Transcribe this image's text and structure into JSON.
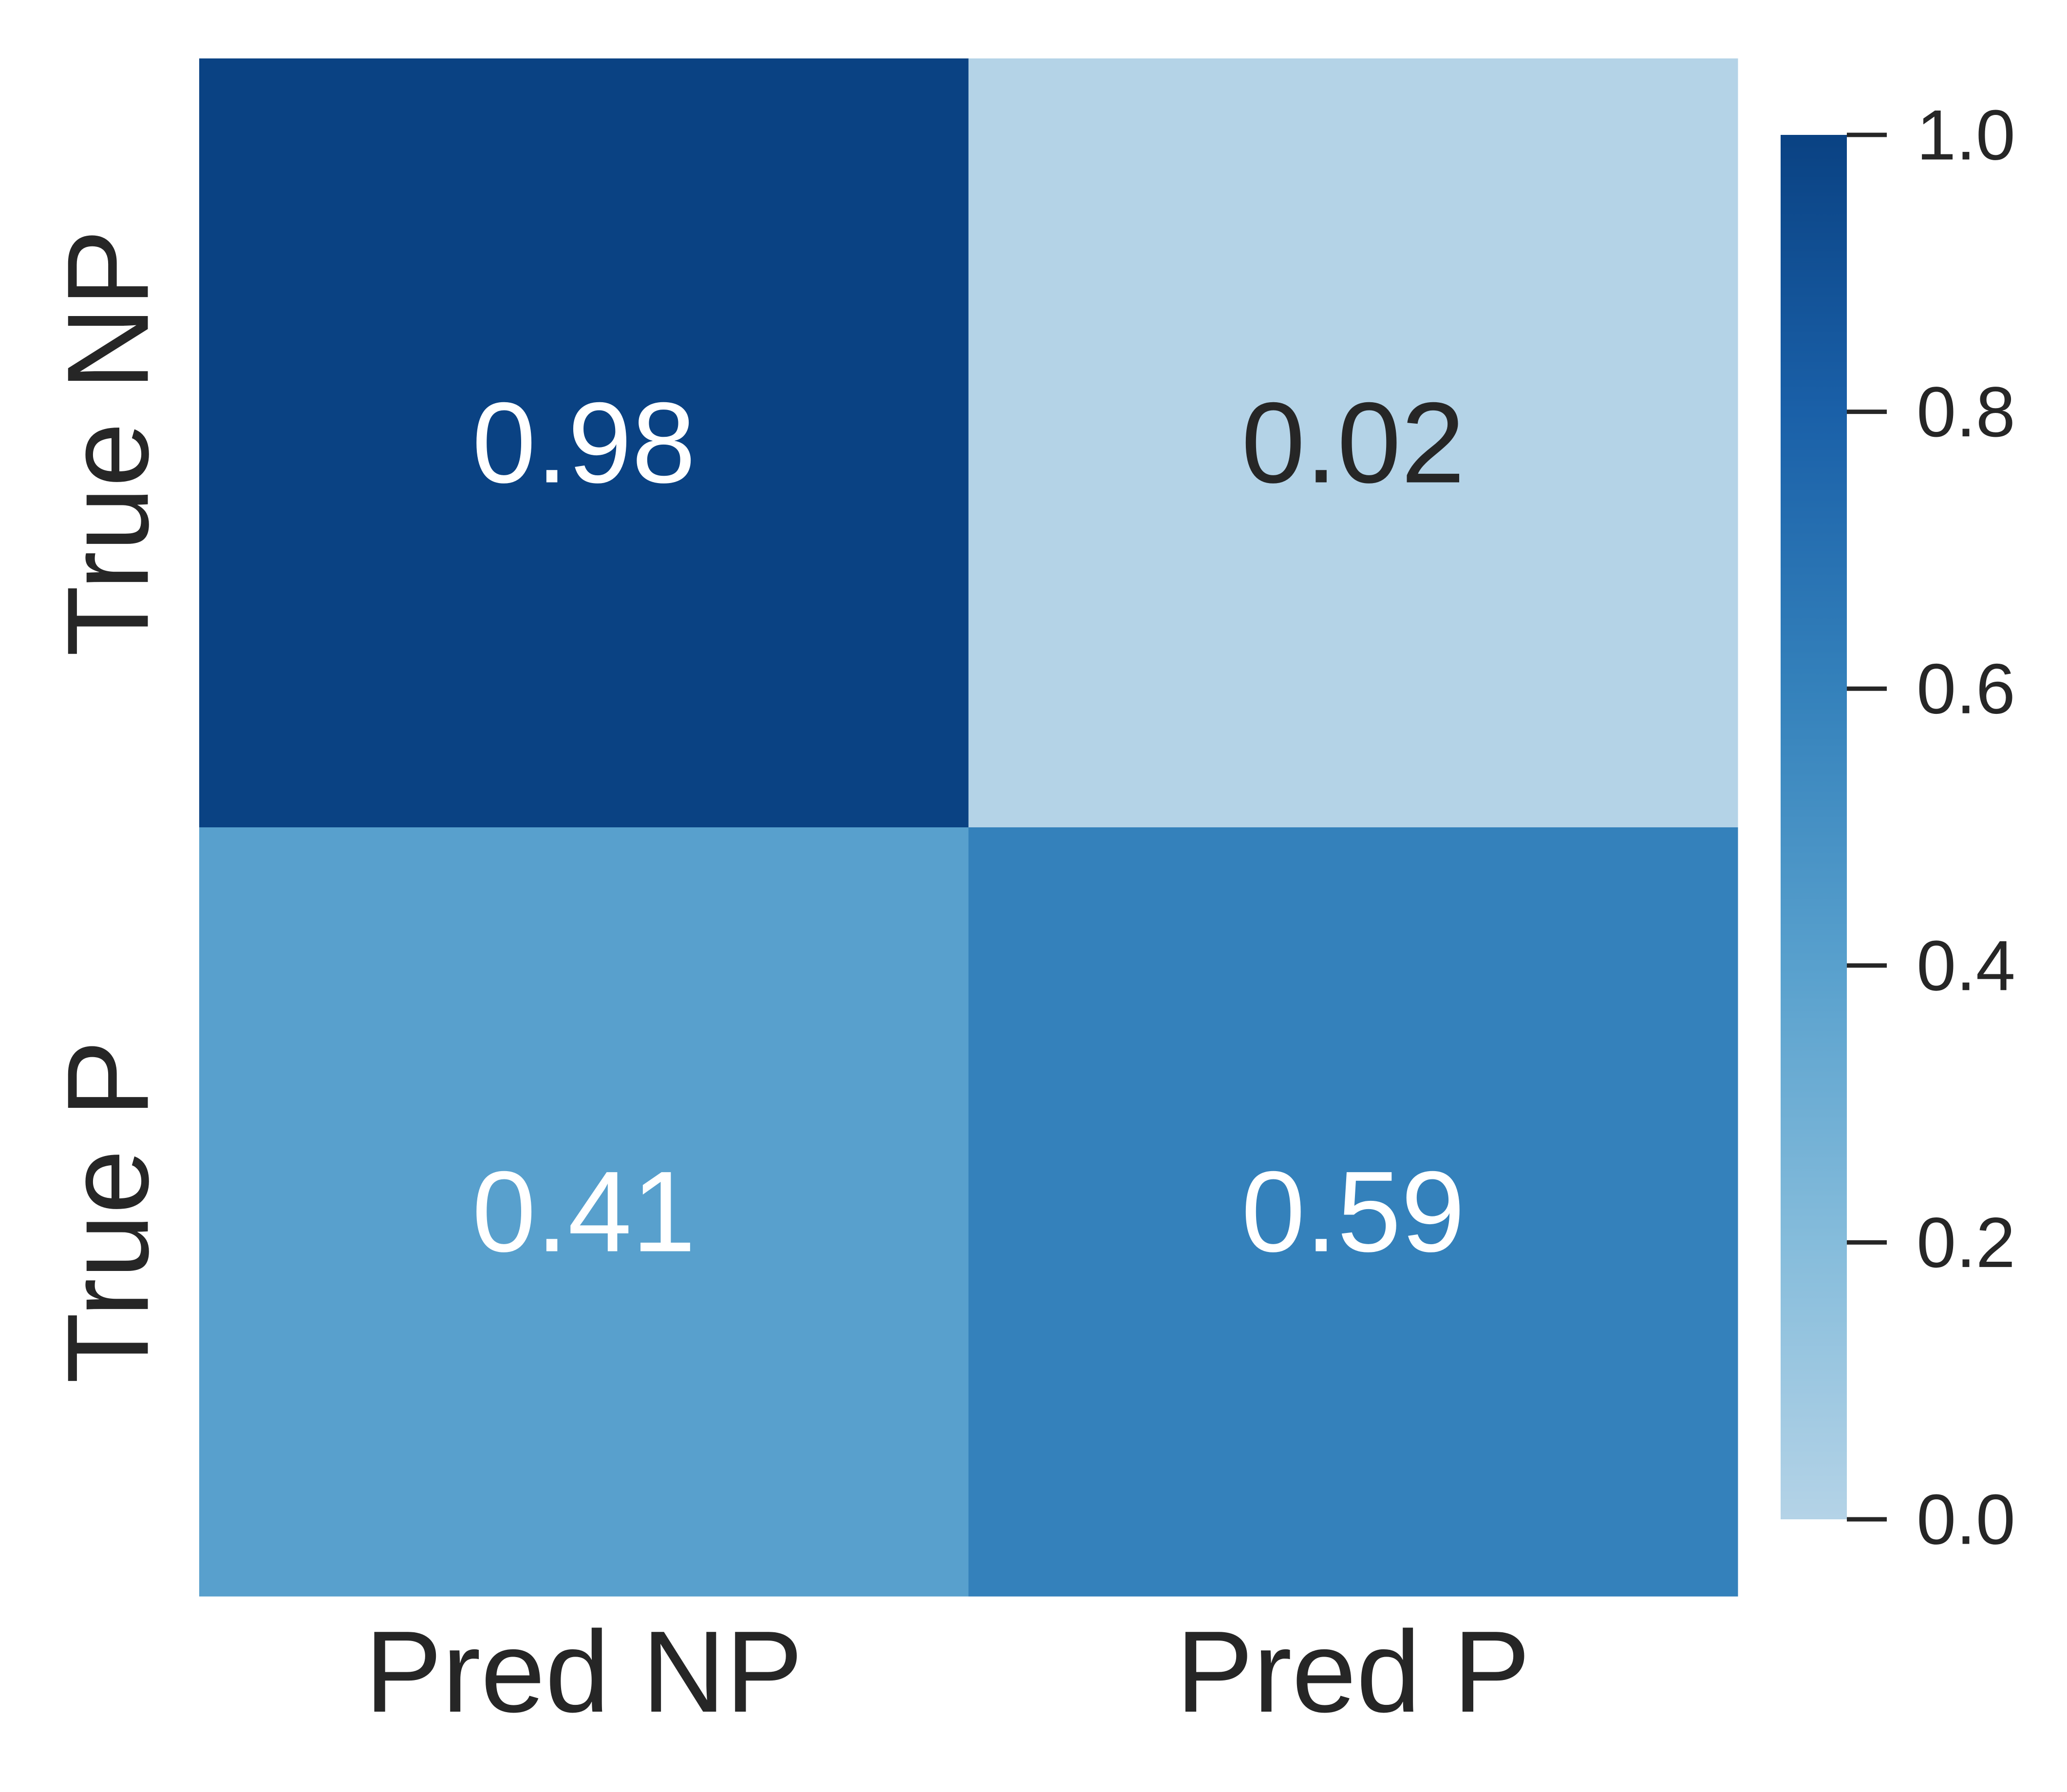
{
  "chart_data": {
    "type": "heatmap",
    "title": "",
    "xlabel": "",
    "ylabel": "",
    "x_categories": [
      "Pred NP",
      "Pred P"
    ],
    "y_categories": [
      "True NP",
      "True P"
    ],
    "values": [
      [
        0.98,
        0.02
      ],
      [
        0.41,
        0.59
      ]
    ],
    "value_labels": [
      [
        "0.98",
        "0.02"
      ],
      [
        "0.41",
        "0.59"
      ]
    ],
    "colormap": "Blues",
    "color_range": [
      0.0,
      1.0
    ],
    "colorbar": {
      "ticks": [
        0.0,
        0.2,
        0.4,
        0.6,
        0.8,
        1.0
      ],
      "tick_labels": [
        "0.0",
        "0.2",
        "0.4",
        "0.6",
        "0.8",
        "1.0"
      ],
      "placement": "right"
    },
    "grid": false
  },
  "colors": {
    "cell_0_0": "#0a4283",
    "cell_0_1": "#b4d3e7",
    "cell_1_0": "#58a0cd",
    "cell_1_1": "#3481bb",
    "colorbar_stops": [
      "#b4d3e7",
      "#85bcdb",
      "#58a0cd",
      "#3481bb",
      "#1a60a8",
      "#0a4283"
    ],
    "text_dark": "#262626",
    "text_light": "#ffffff"
  }
}
